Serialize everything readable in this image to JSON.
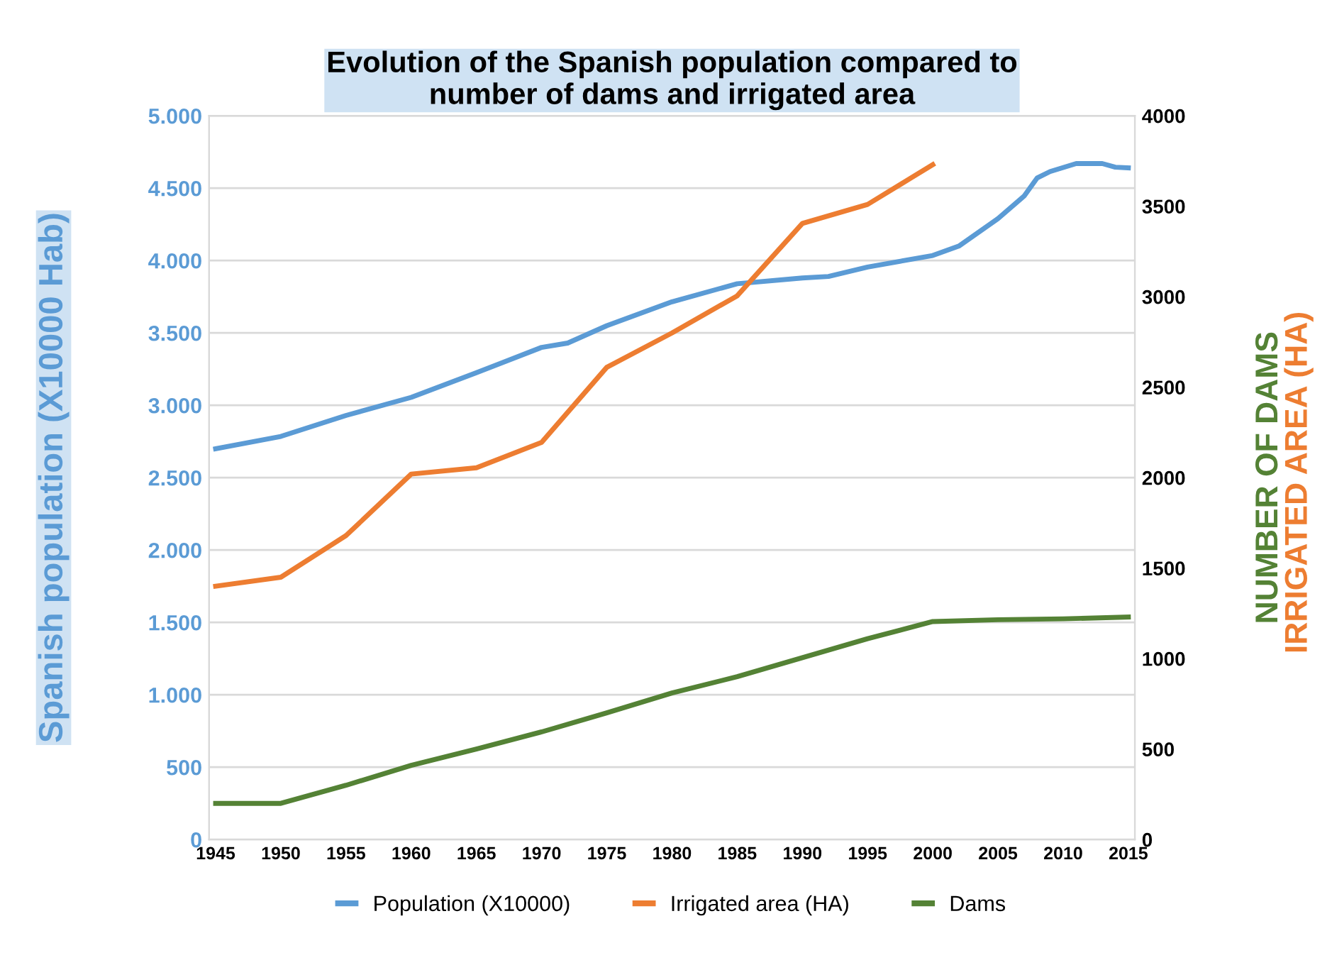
{
  "chart_data": {
    "type": "line",
    "title": "Evolution of the Spanish population compared to\nnumber of dams and irrigated area",
    "ylabel": "Spanish population (X10000 Hab)",
    "y2label": "NUMBER OF DAMS",
    "annotations": [
      "IRRIGATED AREA (HA)"
    ],
    "series": [
      {
        "name": "Population (X10000)",
        "color": "#5b9bd5",
        "x": [
          1945,
          1950,
          1955,
          1960,
          1965,
          1970,
          1972,
          1975,
          1980,
          1985,
          1990,
          1992,
          1995,
          2000,
          2002,
          2005,
          2007,
          2008,
          2009,
          2011,
          2013,
          2014,
          2015
        ],
        "values": [
          2700,
          2785,
          2930,
          3055,
          3225,
          3400,
          3430,
          3550,
          3715,
          3840,
          3880,
          3890,
          3955,
          4035,
          4100,
          4290,
          4445,
          4570,
          4615,
          4670,
          4670,
          4645,
          4640
        ]
      },
      {
        "name": "Irrigated area (HA)",
        "color": "#ed7d31",
        "axis": "y2",
        "x": [
          1945,
          1950,
          1955,
          1960,
          1965,
          1970,
          1975,
          1980,
          1985,
          1990,
          1995,
          2000
        ],
        "values": [
          1400,
          1450,
          1680,
          2020,
          2055,
          2195,
          2610,
          2800,
          3005,
          3405,
          3510,
          3730
        ]
      },
      {
        "name": "Dams",
        "color": "#548235",
        "axis": "y2",
        "x": [
          1945,
          1950,
          1955,
          1960,
          1965,
          1970,
          1975,
          1980,
          1985,
          1990,
          1995,
          2000,
          2005,
          2010,
          2015
        ],
        "values": [
          200,
          200,
          300,
          410,
          500,
          595,
          700,
          810,
          900,
          1005,
          1110,
          1205,
          1215,
          1220,
          1230
        ]
      }
    ],
    "xlim": [
      1944.5,
      2015.5
    ],
    "xticks": [
      1945,
      1950,
      1955,
      1960,
      1965,
      1970,
      1975,
      1980,
      1985,
      1990,
      1995,
      2000,
      2005,
      2010,
      2015
    ],
    "ylim": [
      0,
      5000
    ],
    "yticks": [
      0,
      {
        "value": 500,
        "label": "500"
      },
      {
        "value": 1000,
        "label": "1.000"
      },
      {
        "value": 1500,
        "label": "1.500"
      },
      {
        "value": 2000,
        "label": "2.000"
      },
      {
        "value": 2500,
        "label": "2.500"
      },
      {
        "value": 3000,
        "label": "3.000"
      },
      {
        "value": 3500,
        "label": "3.500"
      },
      {
        "value": 4000,
        "label": "4.000"
      },
      {
        "value": 4500,
        "label": "4.500"
      },
      {
        "value": 5000,
        "label": "5.000"
      }
    ],
    "y2lim": [
      0,
      4000
    ],
    "y2ticks": [
      0,
      500,
      1000,
      1500,
      2000,
      2500,
      3000,
      3500,
      4000
    ],
    "grid": "y",
    "legend": "bottom",
    "marker": "none",
    "line_style": "solid"
  }
}
